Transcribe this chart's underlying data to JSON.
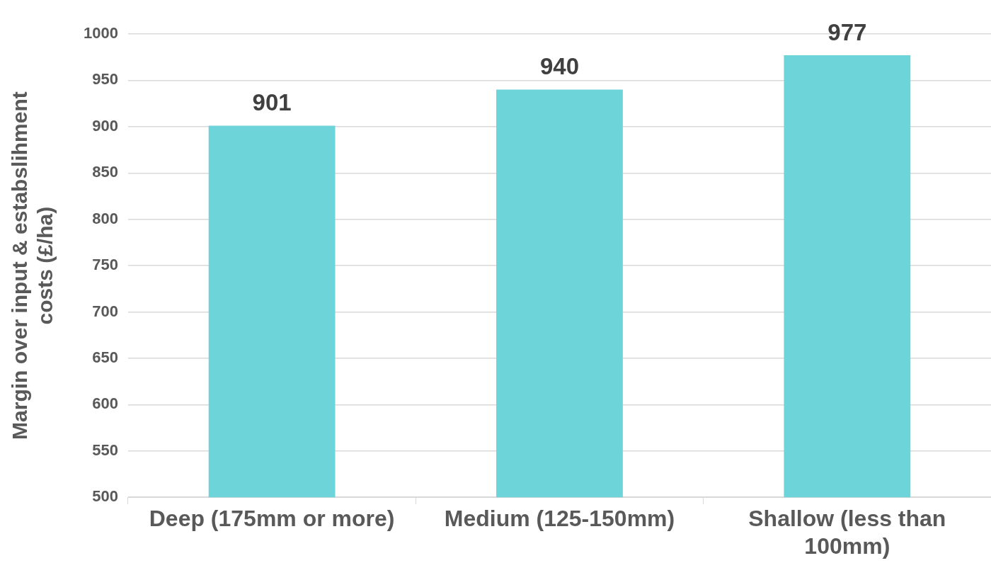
{
  "chart_data": {
    "type": "bar",
    "ylabel": "Margin over input & estabslihment costs (£/ha)",
    "categories": [
      "Deep (175mm or more)",
      "Medium (125-150mm)",
      "Shallow (less than 100mm)"
    ],
    "values": [
      901,
      940,
      977
    ],
    "color": "#6dd4d9",
    "ylim": [
      500,
      1000
    ],
    "yticks": [
      500,
      550,
      600,
      650,
      700,
      750,
      800,
      850,
      900,
      950,
      1000
    ],
    "grid": "y",
    "data_labels": true,
    "legend": false
  }
}
